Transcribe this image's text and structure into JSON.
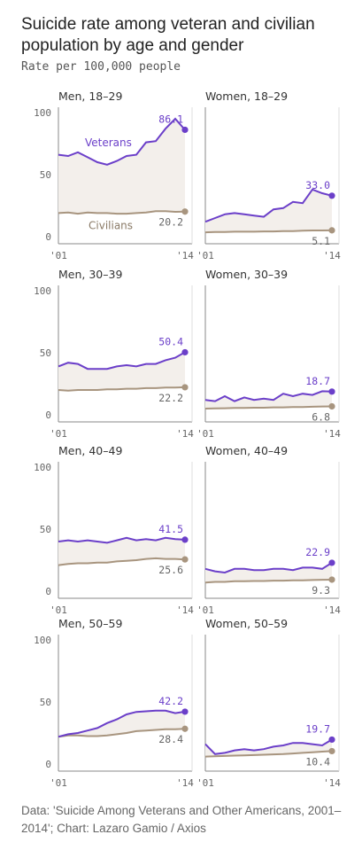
{
  "title": "Suicide rate among veteran and civilian population by age and gender",
  "subtitle": "Rate per 100,000 people",
  "source": "Data: 'Suicide Among Veterans and Other Americans, 2001–2014'; Chart: Lazaro Gamio / Axios",
  "colors": {
    "veterans": "#6b3fc9",
    "civilians": "#a8957f",
    "fill": "#f3efeb",
    "axis": "#888888",
    "grid": "#e8e8e8"
  },
  "chart_data": {
    "type": "area",
    "x": [
      2001,
      2002,
      2003,
      2004,
      2005,
      2006,
      2007,
      2008,
      2009,
      2010,
      2011,
      2012,
      2013,
      2014
    ],
    "x_ticks": [
      "'01",
      "'14"
    ],
    "ylim": [
      0,
      100
    ],
    "y_ticks": [
      0,
      50,
      100
    ],
    "series_labels": {
      "veterans": "Veterans",
      "civilians": "Civilians"
    },
    "panels": [
      {
        "title": "Men, 18–29",
        "veterans": [
          66,
          65,
          68,
          64,
          60,
          58,
          61,
          65,
          66,
          76,
          77,
          87,
          95,
          86.1
        ],
        "civilians": [
          19,
          19.5,
          18.5,
          19.5,
          19,
          19,
          18.5,
          18.5,
          19,
          19.5,
          20.5,
          20.5,
          20,
          20.2
        ],
        "veterans_label": "86.1",
        "civilians_label": "20.2"
      },
      {
        "title": "Women, 18–29",
        "veterans": [
          12,
          15,
          18,
          19,
          18,
          17,
          16,
          22,
          23,
          28,
          27,
          38,
          35,
          33.0
        ],
        "civilians": [
          3.5,
          3.8,
          3.8,
          4,
          4,
          4,
          4.2,
          4.2,
          4.5,
          4.5,
          4.8,
          5,
          5,
          5.1
        ],
        "veterans_label": "33.0",
        "civilians_label": "5.1"
      },
      {
        "title": "Men, 30–39",
        "veterans": [
          39,
          42,
          41,
          37,
          37,
          37,
          39,
          40,
          39,
          41,
          41,
          44,
          46,
          50.4
        ],
        "civilians": [
          20,
          19.5,
          20,
          20,
          20,
          20.5,
          20.5,
          21,
          21,
          21.5,
          21.5,
          22,
          22,
          22.2
        ],
        "veterans_label": "50.4",
        "civilians_label": "22.2"
      },
      {
        "title": "Women, 30–39",
        "veterans": [
          12,
          11,
          15,
          11,
          14,
          12,
          13,
          12,
          17,
          15,
          17,
          16,
          19,
          18.7
        ],
        "civilians": [
          5,
          5.2,
          5.3,
          5.5,
          5.5,
          5.7,
          5.7,
          6,
          6,
          6.2,
          6.3,
          6.5,
          6.7,
          6.8
        ],
        "veterans_label": "18.7",
        "civilians_label": "6.8"
      },
      {
        "title": "Men, 40–49",
        "veterans": [
          40,
          41,
          40,
          41,
          40,
          39,
          41,
          43,
          41,
          42,
          41,
          43,
          42,
          41.5
        ],
        "civilians": [
          21,
          22,
          22.5,
          22.5,
          23,
          23,
          24,
          24.5,
          25,
          26,
          26.5,
          26,
          26,
          25.6
        ],
        "veterans_label": "41.5",
        "civilians_label": "25.6"
      },
      {
        "title": "Women, 40–49",
        "veterans": [
          18,
          16,
          15,
          18,
          18,
          17,
          17,
          18,
          18,
          17,
          19,
          19,
          18,
          22.9
        ],
        "civilians": [
          7,
          7.5,
          7.5,
          8,
          8,
          8.2,
          8.2,
          8.5,
          8.5,
          8.7,
          8.8,
          9,
          9.2,
          9.3
        ],
        "veterans_label": "22.9",
        "civilians_label": "9.3"
      },
      {
        "title": "Men, 50–59",
        "veterans": [
          22,
          24,
          25,
          27,
          29,
          33,
          36,
          40,
          42,
          42.5,
          43,
          43,
          41,
          42.2
        ],
        "civilians": [
          22,
          23,
          23,
          22.5,
          22.5,
          23,
          24,
          25,
          26.5,
          27,
          27.5,
          28,
          28,
          28.4
        ],
        "veterans_label": "42.2",
        "civilians_label": "28.4"
      },
      {
        "title": "Women, 50–59",
        "veterans": [
          16,
          8,
          9,
          11,
          12,
          11,
          12,
          14,
          15,
          17,
          17,
          16,
          15,
          19.7
        ],
        "civilians": [
          6,
          6.2,
          6.5,
          6.8,
          7,
          7.2,
          7.5,
          7.8,
          8,
          8.5,
          9,
          9.5,
          10,
          10.4
        ],
        "veterans_label": "19.7",
        "civilians_label": "10.4"
      }
    ]
  }
}
